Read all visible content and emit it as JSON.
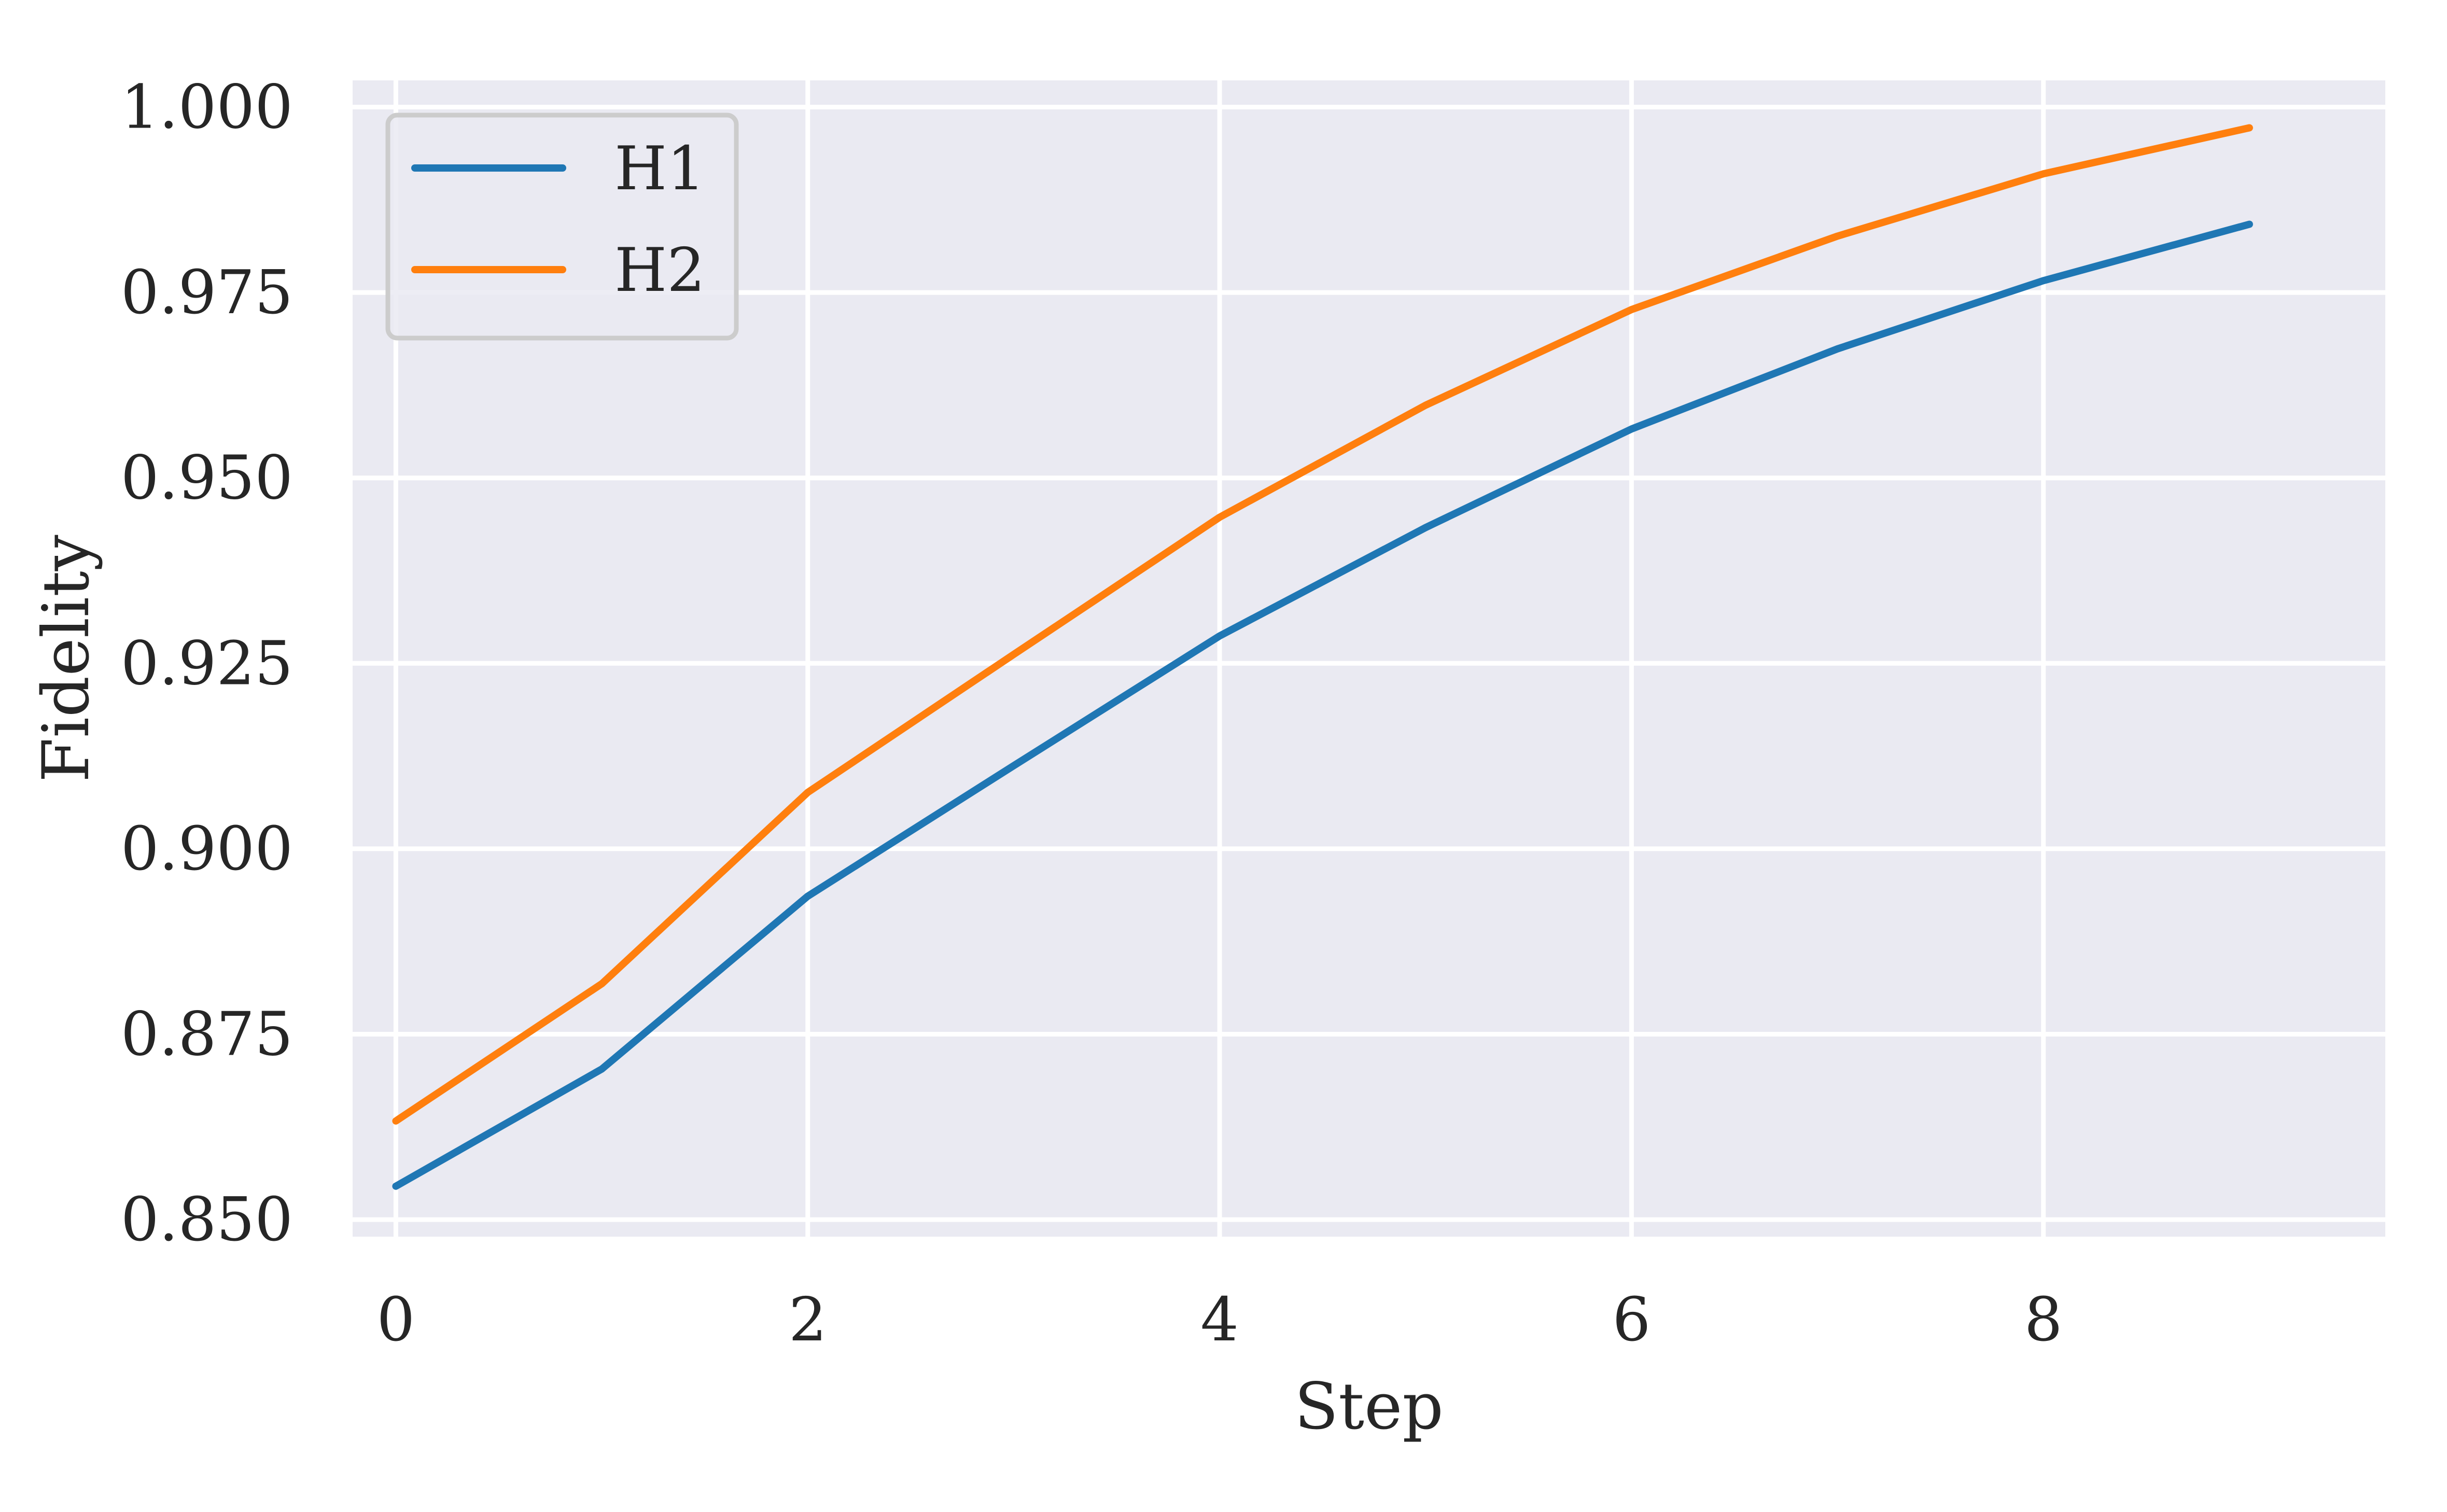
{
  "chart_data": {
    "type": "line",
    "title": "",
    "xlabel": "Step",
    "ylabel": "Fidelity",
    "x": [
      0,
      1,
      2,
      3,
      4,
      5,
      6,
      7,
      8,
      9
    ],
    "xlim": [
      -0.21,
      9.66
    ],
    "ylim": [
      0.8477,
      1.0036
    ],
    "xticks": [
      0,
      2,
      4,
      6,
      8
    ],
    "xtick_labels": [
      "0",
      "2",
      "4",
      "6",
      "8"
    ],
    "yticks": [
      0.85,
      0.875,
      0.9,
      0.925,
      0.95,
      0.975,
      1.0
    ],
    "ytick_labels": [
      "0.850",
      "0.875",
      "0.900",
      "0.925",
      "0.950",
      "0.975",
      "1.000"
    ],
    "grid": true,
    "legend_position": "top-left",
    "background_color": "#eaeaf2",
    "series": [
      {
        "name": "H1",
        "color": "#1f77b4",
        "values": [
          0.8545,
          0.8703,
          0.8936,
          0.9112,
          0.9287,
          0.9433,
          0.9566,
          0.9674,
          0.9766,
          0.9842
        ]
      },
      {
        "name": "H2",
        "color": "#ff7f0e",
        "values": [
          0.8633,
          0.8818,
          0.9076,
          0.9262,
          0.9447,
          0.9598,
          0.9727,
          0.9826,
          0.991,
          0.9972
        ]
      }
    ]
  }
}
